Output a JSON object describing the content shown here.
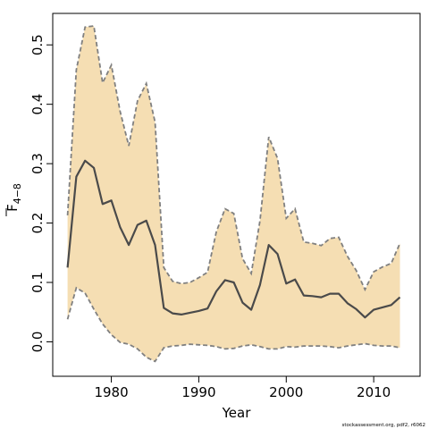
{
  "chart_data": {
    "type": "line",
    "xlabel": "Year",
    "ylabel": "F",
    "ylabel_subscript": "4−8",
    "footer": "stockassessment.org, pdf2, r6062",
    "xlim": [
      1973.3,
      2015.3
    ],
    "ylim": [
      -0.058,
      0.553
    ],
    "x_ticks": [
      1980,
      1990,
      2000,
      2010
    ],
    "y_ticks": [
      0.0,
      0.1,
      0.2,
      0.3,
      0.4,
      0.5
    ],
    "y_tick_labels": [
      "0.0",
      "0.1",
      "0.2",
      "0.3",
      "0.4",
      "0.5"
    ],
    "grid": false,
    "colors": {
      "band_fill": "#f5deb3",
      "line": "#4a4a4a",
      "bound_line": "#808080"
    },
    "x": [
      1975,
      1976,
      1977,
      1978,
      1979,
      1980,
      1981,
      1982,
      1983,
      1984,
      1985,
      1986,
      1987,
      1988,
      1989,
      1990,
      1991,
      1992,
      1993,
      1994,
      1995,
      1996,
      1997,
      1998,
      1999,
      2000,
      2001,
      2002,
      2003,
      2004,
      2005,
      2006,
      2007,
      2008,
      2009,
      2010,
      2011,
      2012,
      2013
    ],
    "series": [
      {
        "role": "estimate",
        "values": [
          0.125,
          0.278,
          0.305,
          0.293,
          0.232,
          0.238,
          0.193,
          0.163,
          0.197,
          0.204,
          0.163,
          0.057,
          0.048,
          0.046,
          0.049,
          0.052,
          0.056,
          0.085,
          0.104,
          0.1,
          0.066,
          0.054,
          0.096,
          0.163,
          0.148,
          0.098,
          0.105,
          0.078,
          0.077,
          0.075,
          0.081,
          0.081,
          0.065,
          0.055,
          0.041,
          0.054,
          0.058,
          0.062,
          0.075
        ]
      },
      {
        "role": "upper",
        "values": [
          0.213,
          0.458,
          0.53,
          0.532,
          0.436,
          0.466,
          0.388,
          0.33,
          0.406,
          0.435,
          0.37,
          0.125,
          0.102,
          0.098,
          0.1,
          0.108,
          0.117,
          0.185,
          0.224,
          0.216,
          0.14,
          0.115,
          0.204,
          0.345,
          0.309,
          0.208,
          0.224,
          0.168,
          0.166,
          0.162,
          0.174,
          0.176,
          0.144,
          0.12,
          0.088,
          0.118,
          0.126,
          0.132,
          0.166
        ]
      },
      {
        "role": "lower",
        "values": [
          0.038,
          0.091,
          0.082,
          0.055,
          0.03,
          0.012,
          -0.001,
          -0.004,
          -0.012,
          -0.026,
          -0.033,
          -0.01,
          -0.007,
          -0.006,
          -0.004,
          -0.005,
          -0.006,
          -0.008,
          -0.012,
          -0.011,
          -0.007,
          -0.005,
          -0.008,
          -0.012,
          -0.012,
          -0.008,
          -0.009,
          -0.007,
          -0.007,
          -0.007,
          -0.008,
          -0.01,
          -0.007,
          -0.005,
          -0.003,
          -0.006,
          -0.007,
          -0.007,
          -0.01
        ]
      }
    ]
  }
}
